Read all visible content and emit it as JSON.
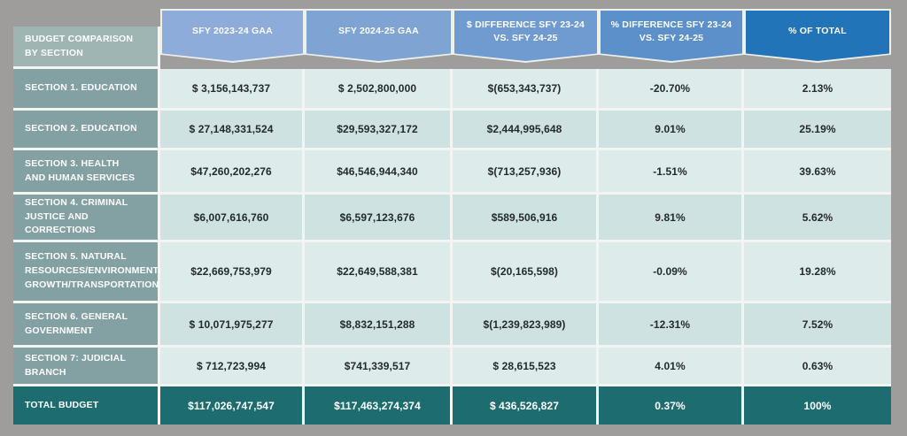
{
  "page": {
    "background": "#9e9d9b"
  },
  "table": {
    "corner_header": "BUDGET COMPARISON\nBY SECTION",
    "columns": [
      {
        "label": "SFY 2023-24 GAA",
        "color": "#8dacd9"
      },
      {
        "label": "SFY 2024-25 GAA",
        "color": "#7ea4d3"
      },
      {
        "label": "$ DIFFERENCE SFY 23-24\nVS. SFY 24-25",
        "color": "#6f9bd0"
      },
      {
        "label": "% DIFFERENCE SFY 23-24\nVS. SFY 24-25",
        "color": "#5c90ca"
      },
      {
        "label": "% OF TOTAL",
        "color": "#2274b9"
      }
    ],
    "rows": [
      {
        "label": "SECTION 1. EDUCATION",
        "values": [
          "$ 3,156,143,737",
          "$ 2,502,800,000",
          "$(653,343,737)",
          "-20.70%",
          "2.13%"
        ]
      },
      {
        "label": "SECTION 2. EDUCATION",
        "values": [
          "$ 27,148,331,524",
          "$29,593,327,172",
          "$2,444,995,648",
          "9.01%",
          "25.19%"
        ]
      },
      {
        "label": "SECTION 3. HEALTH\nAND HUMAN SERVICES",
        "values": [
          "$47,260,202,276",
          "$46,546,944,340",
          "$(713,257,936)",
          "-1.51%",
          "39.63%"
        ]
      },
      {
        "label": "SECTION 4. CRIMINAL\nJUSTICE AND CORRECTIONS",
        "values": [
          "$6,007,616,760",
          "$6,597,123,676",
          "$589,506,916",
          "9.81%",
          "5.62%"
        ]
      },
      {
        "label": "SECTION 5. NATURAL\nRESOURCES/ENVIRONMENT/\nGROWTH/TRANSPORTATION",
        "values": [
          "$22,669,753,979",
          "$22,649,588,381",
          "$(20,165,598)",
          "-0.09%",
          "19.28%"
        ]
      },
      {
        "label": "SECTION 6. GENERAL\nGOVERNMENT",
        "values": [
          "$ 10,071,975,277",
          "$8,832,151,288",
          "$(1,239,823,989)",
          "-12.31%",
          "7.52%"
        ]
      },
      {
        "label": "SECTION 7: JUDICIAL BRANCH",
        "values": [
          "$ 712,723,994",
          "$741,339,517",
          "$ 28,615,523",
          "4.01%",
          "0.63%"
        ]
      }
    ],
    "total": {
      "label": "TOTAL BUDGET",
      "values": [
        "$117,026,747,547",
        "$117,463,274,374",
        "$ 436,526,827",
        "0.37%",
        "100%"
      ]
    },
    "colors": {
      "label_cell": "#83a0a2",
      "corner_cell": "#9fb5b4",
      "row_light": "#ddecea",
      "row_dark": "#cee3e1",
      "total_row": "#1d6c6f",
      "divider": "#f4f4f2"
    }
  }
}
